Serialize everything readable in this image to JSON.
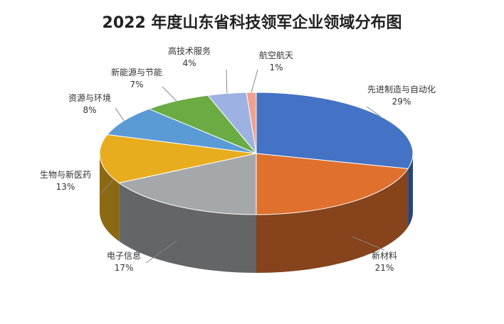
{
  "chart_data": {
    "type": "pie",
    "style": "3d",
    "title": "2022 年度山东省科技领军企业领域分布图",
    "start": "top",
    "direction": "clockwise",
    "slices": [
      {
        "label": "先进制造与自动化",
        "value": 29,
        "pct": "29%",
        "color": "#4472c4"
      },
      {
        "label": "新材料",
        "value": 21,
        "pct": "21%",
        "color": "#e0702e"
      },
      {
        "label": "电子信息",
        "value": 17,
        "pct": "17%",
        "color": "#a5a8ab"
      },
      {
        "label": "生物与新医药",
        "value": 13,
        "pct": "13%",
        "color": "#e8ad1e"
      },
      {
        "label": "资源与环境",
        "value": 8,
        "pct": "8%",
        "color": "#5b9bd5"
      },
      {
        "label": "新能源与节能",
        "value": 7,
        "pct": "7%",
        "color": "#6aab44"
      },
      {
        "label": "高技术服务",
        "value": 4,
        "pct": "4%",
        "color": "#9db2e2"
      },
      {
        "label": "航空航天",
        "value": 1,
        "pct": "1%",
        "color": "#f0a08c"
      }
    ]
  }
}
